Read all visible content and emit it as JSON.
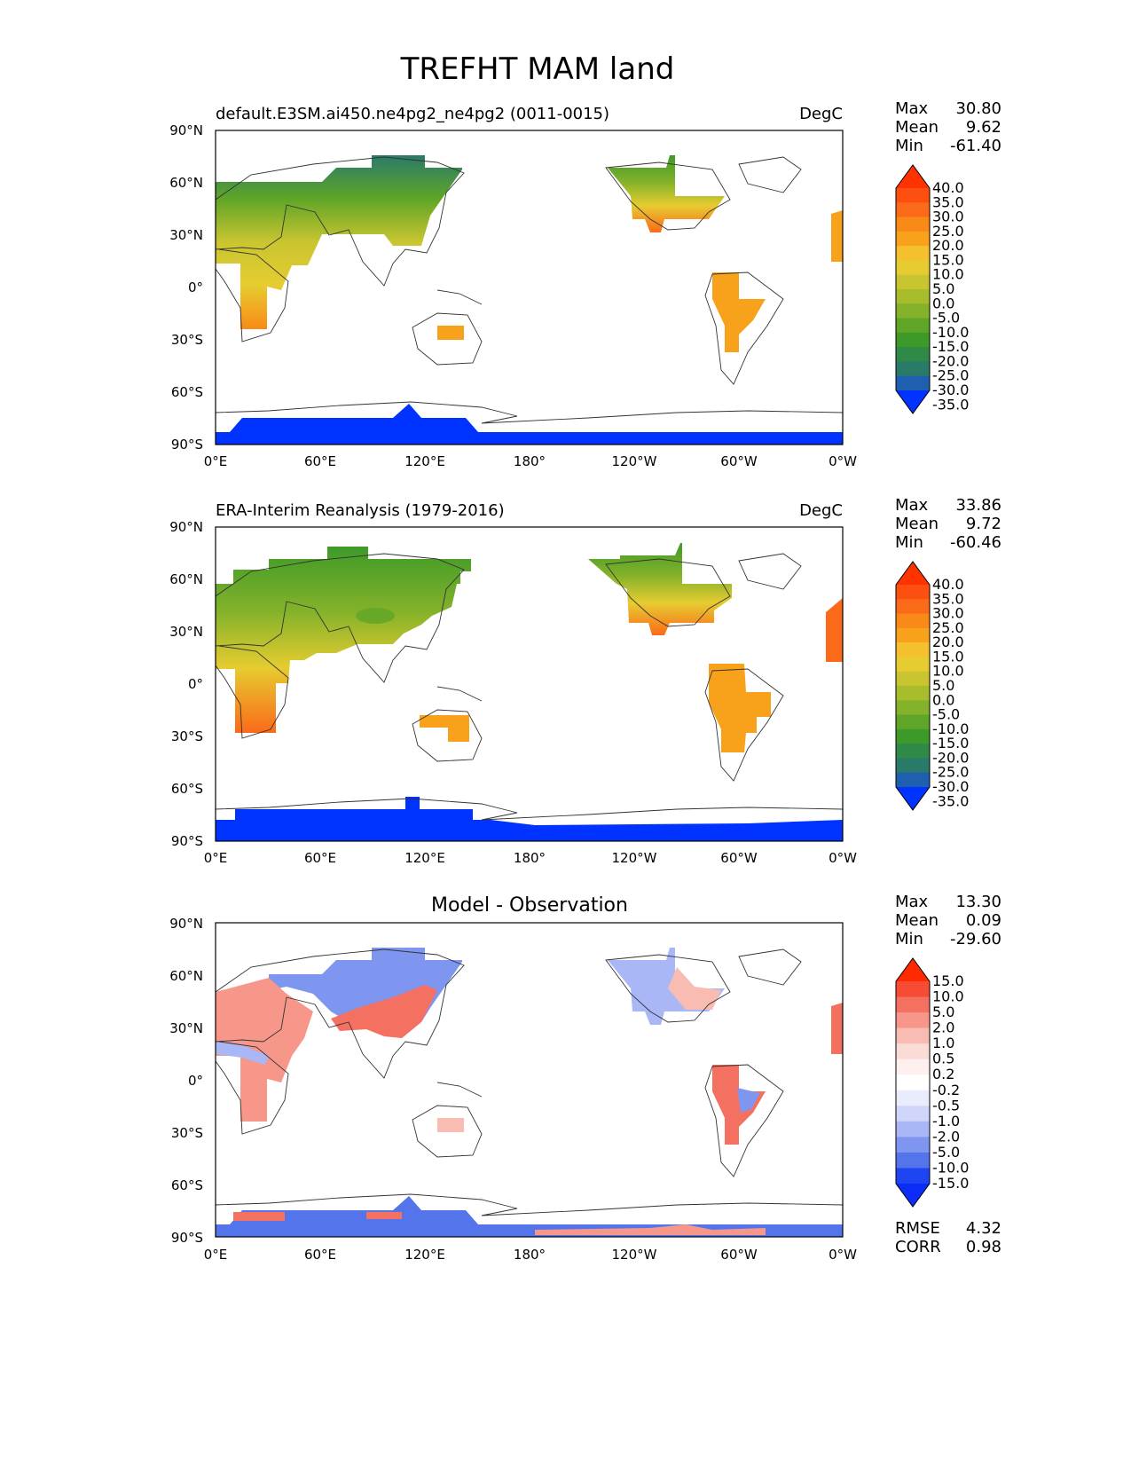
{
  "figure": {
    "title": "TREFHT MAM land"
  },
  "icons": {
    "map": "world-map",
    "colorbar": "colorbar-arrow-ends"
  },
  "ticks": {
    "lat": [
      "90°N",
      "60°N",
      "30°N",
      "0°",
      "30°S",
      "60°S",
      "90°S"
    ],
    "lon": [
      "0°E",
      "60°E",
      "120°E",
      "180°",
      "120°W",
      "60°W",
      "0°W"
    ]
  },
  "panels": [
    {
      "title": "default.E3SM.ai450.ne4pg2_ne4pg2 (0011-0015)",
      "units": "DegC",
      "stats": {
        "max_label": "Max",
        "max": "30.80",
        "mean_label": "Mean",
        "mean": "9.62",
        "min_label": "Min",
        "min": "-61.40"
      },
      "colorbar": [
        "40.0",
        "35.0",
        "30.0",
        "25.0",
        "20.0",
        "15.0",
        "10.0",
        "5.0",
        "0.0",
        "-5.0",
        "-10.0",
        "-15.0",
        "-20.0",
        "-25.0",
        "-30.0",
        "-35.0"
      ]
    },
    {
      "title": "ERA-Interim Reanalysis (1979-2016)",
      "units": "DegC",
      "stats": {
        "max_label": "Max",
        "max": "33.86",
        "mean_label": "Mean",
        "mean": "9.72",
        "min_label": "Min",
        "min": "-60.46"
      },
      "colorbar": [
        "40.0",
        "35.0",
        "30.0",
        "25.0",
        "20.0",
        "15.0",
        "10.0",
        "5.0",
        "0.0",
        "-5.0",
        "-10.0",
        "-15.0",
        "-20.0",
        "-25.0",
        "-30.0",
        "-35.0"
      ]
    },
    {
      "title": "Model - Observation",
      "units": "",
      "stats": {
        "max_label": "Max",
        "max": "13.30",
        "mean_label": "Mean",
        "mean": "0.09",
        "min_label": "Min",
        "min": "-29.60"
      },
      "colorbar": [
        "15.0",
        "10.0",
        "5.0",
        "2.0",
        "1.0",
        "0.5",
        "0.2",
        "-0.2",
        "-0.5",
        "-1.0",
        "-2.0",
        "-5.0",
        "-10.0",
        "-15.0"
      ],
      "metrics": {
        "rmse_label": "RMSE",
        "rmse": "4.32",
        "corr_label": "CORR",
        "corr": "0.98"
      }
    }
  ],
  "colors": {
    "abs_palette": [
      "#ff3300",
      "#fd4f0f",
      "#fb6a19",
      "#f98a17",
      "#f7a21a",
      "#f5c02e",
      "#e6cc30",
      "#c9c530",
      "#a8bd2c",
      "#84b22a",
      "#5fa527",
      "#3e9a28",
      "#2f8a47",
      "#2a7a6a",
      "#1f5fb0",
      "#0033ff"
    ],
    "diff_palette": [
      "#ff2a00",
      "#f84b33",
      "#f47060",
      "#f6978a",
      "#f8bcb2",
      "#fadbd5",
      "#fdf0ee",
      "#ffffff",
      "#e9ecfd",
      "#cfd6fa",
      "#a9b7f6",
      "#7f96f1",
      "#5474ec",
      "#1f44f2",
      "#0c2cf7"
    ]
  }
}
